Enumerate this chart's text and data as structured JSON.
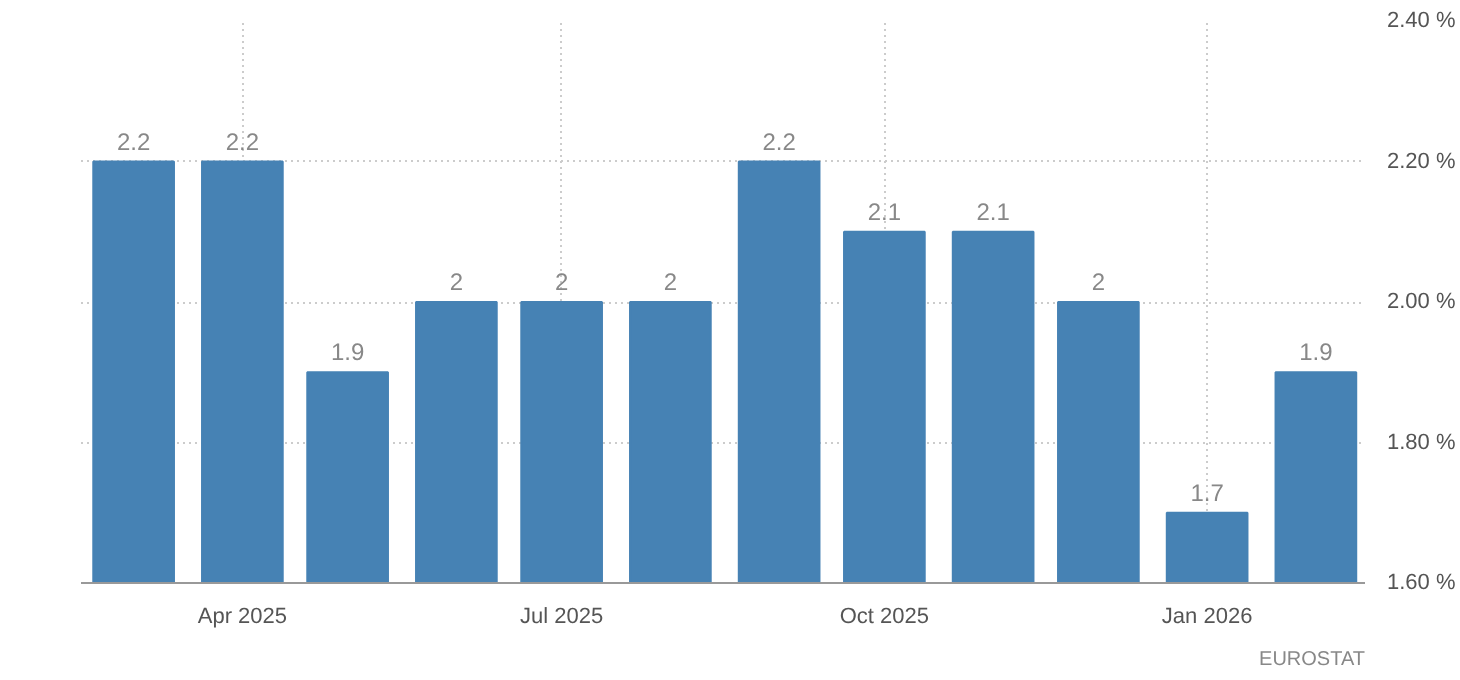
{
  "chart_data": {
    "type": "bar",
    "x": [
      "2025-03",
      "2025-04",
      "2025-05",
      "2025-06",
      "2025-07",
      "2025-08",
      "2025-09",
      "2025-10",
      "2025-11",
      "2025-12",
      "2026-01",
      "2026-02"
    ],
    "values": [
      2.2,
      2.2,
      1.9,
      2,
      2,
      2,
      2.2,
      2.1,
      2.1,
      2,
      1.7,
      1.9
    ],
    "color": "#4682b4",
    "xlim": [
      "2025-02-14",
      "2026-02-15"
    ],
    "xticks": [
      {
        "value": "2025-04",
        "label": "Apr 2025"
      },
      {
        "value": "2025-07",
        "label": "Jul 2025"
      },
      {
        "value": "2025-10",
        "label": "Oct 2025"
      },
      {
        "value": "2026-01",
        "label": "Jan 2026"
      }
    ],
    "ylim": [
      1.6,
      2.4
    ],
    "yticks": [
      {
        "value": 1.6,
        "label": "1.60 %"
      },
      {
        "value": 1.8,
        "label": "1.80 %"
      },
      {
        "value": 2.0,
        "label": "2.00 %"
      },
      {
        "value": 2.2,
        "label": "2.20 %"
      },
      {
        "value": 2.4,
        "label": "2.40 %"
      }
    ],
    "grid": true,
    "data_labels": true,
    "annotations": [
      "EUROSTAT"
    ]
  }
}
